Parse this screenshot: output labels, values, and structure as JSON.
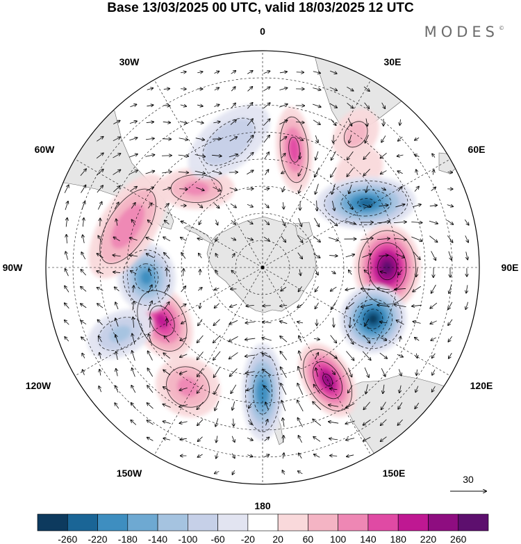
{
  "title": "Base 13/03/2025 00 UTC, valid 18/03/2025 12 UTC",
  "brand": "MODES",
  "brand_mark": "©",
  "longitude_labels": [
    "0",
    "30E",
    "60E",
    "90E",
    "120E",
    "150E",
    "180",
    "150W",
    "120W",
    "90W",
    "60W",
    "30W"
  ],
  "vector_reference": {
    "value": "30"
  },
  "colorbar": {
    "colors": [
      "#0d3a5e",
      "#1a6596",
      "#3e8ec0",
      "#6ea9d2",
      "#a5c3e0",
      "#c6d0e8",
      "#e2e4f1",
      "#ffffff",
      "#f9d9db",
      "#f4b4c4",
      "#ee87b4",
      "#e04aa4",
      "#bf1892",
      "#8e0d80",
      "#5d0f6e"
    ],
    "labels": [
      "-260",
      "-220",
      "-180",
      "-140",
      "-100",
      "-60",
      "-20",
      "20",
      "60",
      "100",
      "140",
      "180",
      "220",
      "260"
    ]
  },
  "anomalies": [
    {
      "lon": 15,
      "lat": -45,
      "value": 150,
      "rx": 26,
      "ry": 62,
      "rot": -20
    },
    {
      "lon": 45,
      "lat": -40,
      "value": 40,
      "rx": 30,
      "ry": 40,
      "rot": 0
    },
    {
      "lon": 58,
      "lat": -45,
      "value": -220,
      "rx": 38,
      "ry": 72,
      "rot": 30
    },
    {
      "lon": 90,
      "lat": -44,
      "value": 260,
      "rx": 62,
      "ry": 48,
      "rot": 0
    },
    {
      "lon": 115,
      "lat": -45,
      "value": -260,
      "rx": 50,
      "ry": 48,
      "rot": 0
    },
    {
      "lon": 150,
      "lat": -42,
      "value": 220,
      "rx": 35,
      "ry": 58,
      "rot": 0
    },
    {
      "lon": 180,
      "lat": -44,
      "value": -200,
      "rx": 30,
      "ry": 70,
      "rot": 0
    },
    {
      "lon": -148,
      "lat": -38,
      "value": 100,
      "rx": 48,
      "ry": 42,
      "rot": 0
    },
    {
      "lon": -118,
      "lat": -48,
      "value": 180,
      "rx": 58,
      "ry": 40,
      "rot": 0
    },
    {
      "lon": -115,
      "lat": -32,
      "value": -100,
      "rx": 32,
      "ry": 50,
      "rot": 0
    },
    {
      "lon": -95,
      "lat": -47,
      "value": -180,
      "rx": 50,
      "ry": 42,
      "rot": 0
    },
    {
      "lon": -73,
      "lat": -38,
      "value": 120,
      "rx": 85,
      "ry": 40,
      "rot": 15
    },
    {
      "lon": -40,
      "lat": -52,
      "value": 100,
      "rx": 55,
      "ry": 30,
      "rot": 40
    },
    {
      "lon": -15,
      "lat": -42,
      "value": -90,
      "rx": 70,
      "ry": 38,
      "rot": -25
    },
    {
      "lon": 35,
      "lat": -30,
      "value": 60,
      "rx": 30,
      "ry": 40,
      "rot": 0
    }
  ]
}
